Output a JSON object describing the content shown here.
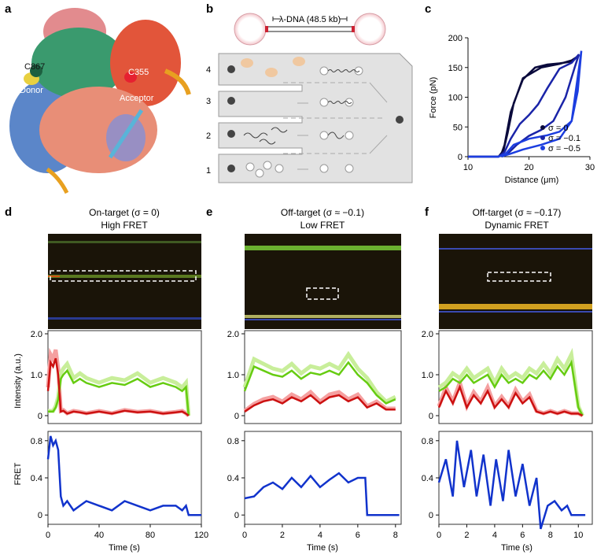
{
  "panels": {
    "a": {
      "letter": "a",
      "labels": {
        "donor_site": "C867",
        "donor": "Donor",
        "acceptor_site": "C355",
        "acceptor": "Acceptor"
      }
    },
    "b": {
      "letter": "b",
      "dna_label": "λ-DNA (48.5 kb)",
      "channels": [
        "1",
        "2",
        "3",
        "4"
      ]
    },
    "c": {
      "letter": "c",
      "xlabel": "Distance (μm)",
      "ylabel": "Force (pN)",
      "xticks": [
        "10",
        "20",
        "30"
      ],
      "yticks": [
        "0",
        "50",
        "100",
        "150",
        "200"
      ],
      "legend": [
        "σ = 0",
        "σ = −0.1",
        "σ = −0.5"
      ],
      "colors": [
        "#0a0a3c",
        "#1a24a8",
        "#1c3ee0"
      ]
    },
    "d": {
      "letter": "d",
      "title1": "On-target (σ = 0)",
      "title2": "High FRET",
      "xticks": [
        "0",
        "40",
        "80",
        "120"
      ],
      "xlabel": "Time (s)"
    },
    "e": {
      "letter": "e",
      "title1": "Off-target (σ ≈ −0.1)",
      "title2": "Low FRET",
      "xticks": [
        "0",
        "2",
        "4",
        "6",
        "8"
      ],
      "xlabel": "Time (s)"
    },
    "f": {
      "letter": "f",
      "title1": "Off-target (σ ≈ −0.17)",
      "title2": "Dynamic FRET",
      "xticks": [
        "0",
        "2",
        "4",
        "6",
        "8",
        "10"
      ],
      "xlabel": "Time (s)"
    }
  },
  "shared": {
    "intensity_ylabel": "Intensity (a.u.)",
    "intensity_yticks": [
      "2.0",
      "1.0",
      "0"
    ],
    "fret_ylabel": "FRET",
    "fret_yticks": [
      "0.8",
      "0.4",
      "0"
    ]
  },
  "chart_data": [
    {
      "type": "line",
      "panel": "c",
      "xlabel": "Distance (μm)",
      "ylabel": "Force (pN)",
      "xlim": [
        10,
        30
      ],
      "ylim": [
        0,
        200
      ],
      "series": [
        {
          "name": "σ = 0",
          "color": "#0a0a3c",
          "x": [
            10,
            15,
            15.8,
            16.5,
            17.5,
            19,
            21,
            23,
            25,
            27,
            28.2,
            28.2,
            27,
            25,
            22,
            19,
            17,
            16,
            15.5,
            15
          ],
          "y": [
            0,
            0,
            10,
            40,
            90,
            130,
            150,
            155,
            157,
            160,
            170,
            170,
            162,
            156,
            150,
            132,
            75,
            20,
            5,
            0
          ]
        },
        {
          "name": "σ = −0.1",
          "color": "#1a24a8",
          "x": [
            10,
            15,
            16,
            17,
            18.5,
            20,
            21.5,
            23,
            25,
            27,
            28.2,
            28.2,
            27.5,
            26,
            24,
            22,
            20,
            18,
            16.5,
            15.5
          ],
          "y": [
            0,
            0,
            8,
            30,
            55,
            70,
            88,
            115,
            148,
            158,
            172,
            172,
            150,
            100,
            60,
            45,
            35,
            20,
            5,
            0
          ]
        },
        {
          "name": "σ = −0.5",
          "color": "#1c3ee0",
          "x": [
            10,
            15,
            16.2,
            17.5,
            20,
            23,
            25,
            27,
            28,
            28.6,
            28.6,
            27.8,
            27,
            25,
            22,
            19,
            17,
            16,
            15.5
          ],
          "y": [
            0,
            0,
            5,
            20,
            30,
            36,
            42,
            60,
            110,
            178,
            178,
            120,
            60,
            30,
            20,
            12,
            5,
            2,
            0
          ]
        }
      ]
    },
    {
      "type": "line",
      "panel": "d-intensity",
      "ylabel": "Intensity (a.u.)",
      "xlim": [
        0,
        120
      ],
      "ylim": [
        0,
        2.0
      ],
      "x": [
        0,
        2,
        4,
        6,
        8,
        10,
        12,
        15,
        20,
        25,
        30,
        40,
        50,
        60,
        70,
        80,
        90,
        100,
        105,
        108,
        110
      ],
      "series": [
        {
          "name": "acceptor",
          "color": "#cc1111",
          "values": [
            0.6,
            1.3,
            1.2,
            1.4,
            1.0,
            0.1,
            0.12,
            0.05,
            0.1,
            0.08,
            0.05,
            0.1,
            0.05,
            0.12,
            0.08,
            0.1,
            0.05,
            0.08,
            0.1,
            0.05,
            0.0
          ]
        },
        {
          "name": "donor",
          "color": "#66cc11",
          "values": [
            0.1,
            0.1,
            0.1,
            0.2,
            0.4,
            0.9,
            1.0,
            1.1,
            0.8,
            0.9,
            0.8,
            0.7,
            0.8,
            0.75,
            0.9,
            0.7,
            0.8,
            0.7,
            0.6,
            0.7,
            0.0
          ]
        }
      ]
    },
    {
      "type": "line",
      "panel": "d-fret",
      "ylabel": "FRET",
      "xlabel": "Time (s)",
      "xlim": [
        0,
        120
      ],
      "ylim": [
        -0.1,
        0.9
      ],
      "x": [
        0,
        2,
        4,
        6,
        8,
        10,
        12,
        15,
        20,
        25,
        30,
        40,
        50,
        60,
        70,
        80,
        90,
        100,
        105,
        108,
        110,
        120
      ],
      "series": [
        {
          "name": "FRET",
          "color": "#1133cc",
          "values": [
            0.6,
            0.85,
            0.75,
            0.8,
            0.7,
            0.2,
            0.1,
            0.15,
            0.05,
            0.1,
            0.15,
            0.1,
            0.05,
            0.15,
            0.1,
            0.05,
            0.1,
            0.1,
            0.05,
            0.1,
            0.0,
            0.0
          ]
        }
      ]
    },
    {
      "type": "line",
      "panel": "e-intensity",
      "ylabel": "Intensity (a.u.)",
      "xlim": [
        0,
        8.3
      ],
      "ylim": [
        0,
        2.0
      ],
      "x": [
        0,
        0.5,
        1,
        1.5,
        2,
        2.5,
        3,
        3.5,
        4,
        4.5,
        5,
        5.5,
        6,
        6.5,
        7,
        7.5,
        8
      ],
      "series": [
        {
          "name": "acceptor",
          "color": "#cc1111",
          "values": [
            0.1,
            0.25,
            0.35,
            0.4,
            0.3,
            0.45,
            0.35,
            0.5,
            0.3,
            0.45,
            0.5,
            0.35,
            0.45,
            0.2,
            0.3,
            0.15,
            0.15
          ]
        },
        {
          "name": "donor",
          "color": "#66cc11",
          "values": [
            0.6,
            1.2,
            1.1,
            1.0,
            0.95,
            1.1,
            0.9,
            1.05,
            1.0,
            1.1,
            1.0,
            1.3,
            1.0,
            0.8,
            0.5,
            0.3,
            0.4
          ]
        }
      ]
    },
    {
      "type": "line",
      "panel": "e-fret",
      "ylabel": "FRET",
      "xlabel": "Time (s)",
      "xlim": [
        0,
        8.3
      ],
      "ylim": [
        -0.1,
        0.9
      ],
      "x": [
        0,
        0.5,
        1,
        1.5,
        2,
        2.5,
        3,
        3.5,
        4,
        4.5,
        5,
        5.5,
        6,
        6.4,
        6.5,
        7,
        8.2
      ],
      "series": [
        {
          "name": "FRET",
          "color": "#1133cc",
          "values": [
            0.18,
            0.2,
            0.3,
            0.35,
            0.28,
            0.4,
            0.3,
            0.42,
            0.3,
            0.38,
            0.45,
            0.35,
            0.4,
            0.4,
            0.0,
            0.0,
            0.0
          ]
        }
      ]
    },
    {
      "type": "line",
      "panel": "f-intensity",
      "ylabel": "Intensity (a.u.)",
      "xlim": [
        0,
        11
      ],
      "ylim": [
        0,
        2.0
      ],
      "x": [
        0,
        0.5,
        1,
        1.5,
        2,
        2.5,
        3,
        3.5,
        4,
        4.5,
        5,
        5.5,
        6,
        6.5,
        7,
        7.5,
        8,
        8.5,
        9,
        9.5,
        10,
        10.3
      ],
      "series": [
        {
          "name": "acceptor",
          "color": "#cc1111",
          "values": [
            0.2,
            0.6,
            0.3,
            0.7,
            0.2,
            0.5,
            0.3,
            0.6,
            0.2,
            0.4,
            0.2,
            0.55,
            0.3,
            0.45,
            0.1,
            0.05,
            0.1,
            0.05,
            0.1,
            0.05,
            0.05,
            0.0
          ]
        },
        {
          "name": "donor",
          "color": "#66cc11",
          "values": [
            0.6,
            0.7,
            0.9,
            0.8,
            1.0,
            0.8,
            0.9,
            1.0,
            0.7,
            1.0,
            0.8,
            0.9,
            0.8,
            1.0,
            0.9,
            1.1,
            0.9,
            1.2,
            1.0,
            1.3,
            0.2,
            0.0
          ]
        }
      ]
    },
    {
      "type": "line",
      "panel": "f-fret",
      "ylabel": "FRET",
      "xlabel": "Time (s)",
      "xlim": [
        0,
        11
      ],
      "ylim": [
        -0.1,
        0.9
      ],
      "x": [
        0,
        0.5,
        1,
        1.3,
        1.8,
        2.3,
        2.7,
        3.2,
        3.7,
        4.1,
        4.6,
        5,
        5.5,
        6,
        6.5,
        7,
        7.3,
        7.8,
        8.3,
        8.8,
        9.2,
        9.5,
        10.5
      ],
      "series": [
        {
          "name": "FRET",
          "color": "#1133cc",
          "values": [
            0.35,
            0.6,
            0.2,
            0.8,
            0.3,
            0.7,
            0.2,
            0.65,
            0.1,
            0.6,
            0.15,
            0.7,
            0.2,
            0.55,
            0.1,
            0.4,
            -0.15,
            0.1,
            0.15,
            0.05,
            0.1,
            0.0,
            0.0
          ]
        }
      ]
    }
  ]
}
